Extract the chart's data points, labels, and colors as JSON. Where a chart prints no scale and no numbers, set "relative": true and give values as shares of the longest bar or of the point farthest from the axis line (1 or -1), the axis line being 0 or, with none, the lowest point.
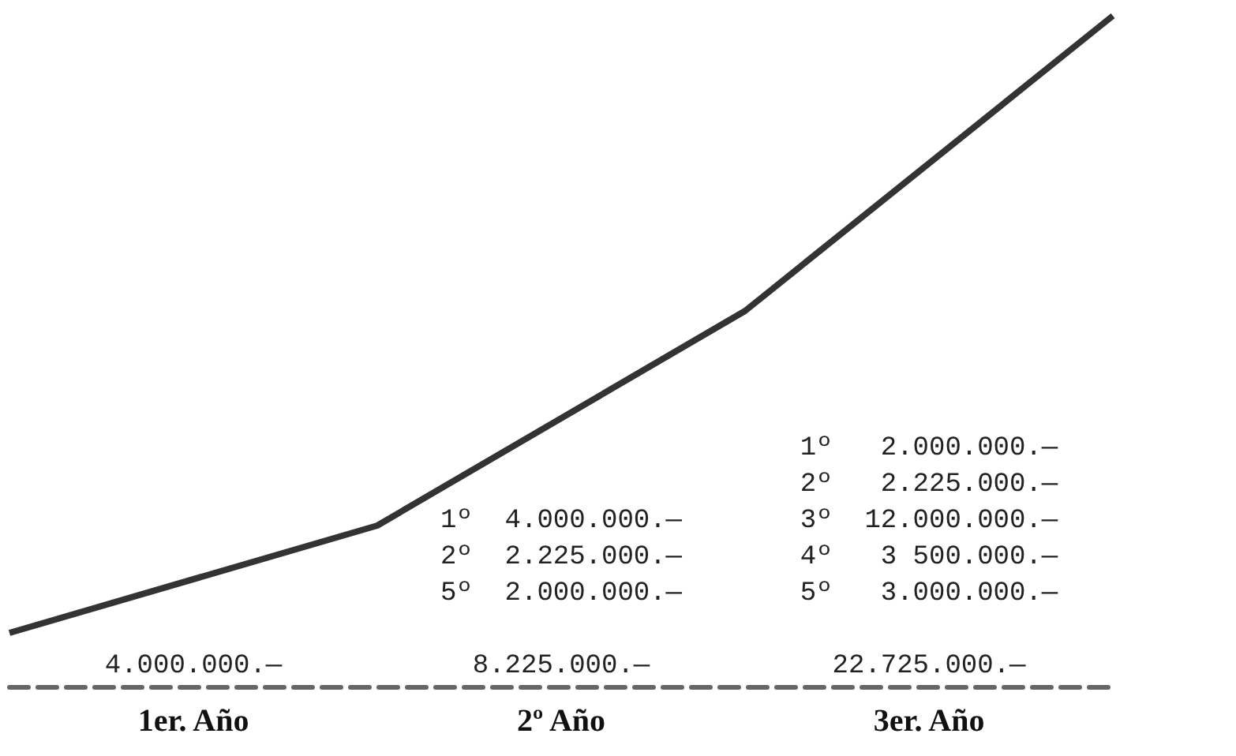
{
  "chart_data": {
    "type": "line",
    "relative": true,
    "x": [
      0,
      1,
      2,
      3
    ],
    "xlim": [
      0,
      3
    ],
    "xticks": [
      {
        "value": 0.5,
        "label": "1er. Año"
      },
      {
        "value": 1.5,
        "label": "2º Año"
      },
      {
        "value": 2.5,
        "label": "3er. Año"
      }
    ],
    "values": [
      0.08,
      0.24,
      0.56,
      1
    ],
    "color": "#333333",
    "marker": "none",
    "grid": false,
    "annotations": [
      "4.000.000.—",
      "1º  4.000.000.—\n2º  2.225.000.—\n5º  2.000.000.—\n\n8.225.000.—",
      "1º   2.000.000.—\n2º   2.225.000.—\n3º  12.000.000.—\n4º   3 500.000.—\n5º   3.000.000.—\n\n22.725.000.—"
    ]
  }
}
